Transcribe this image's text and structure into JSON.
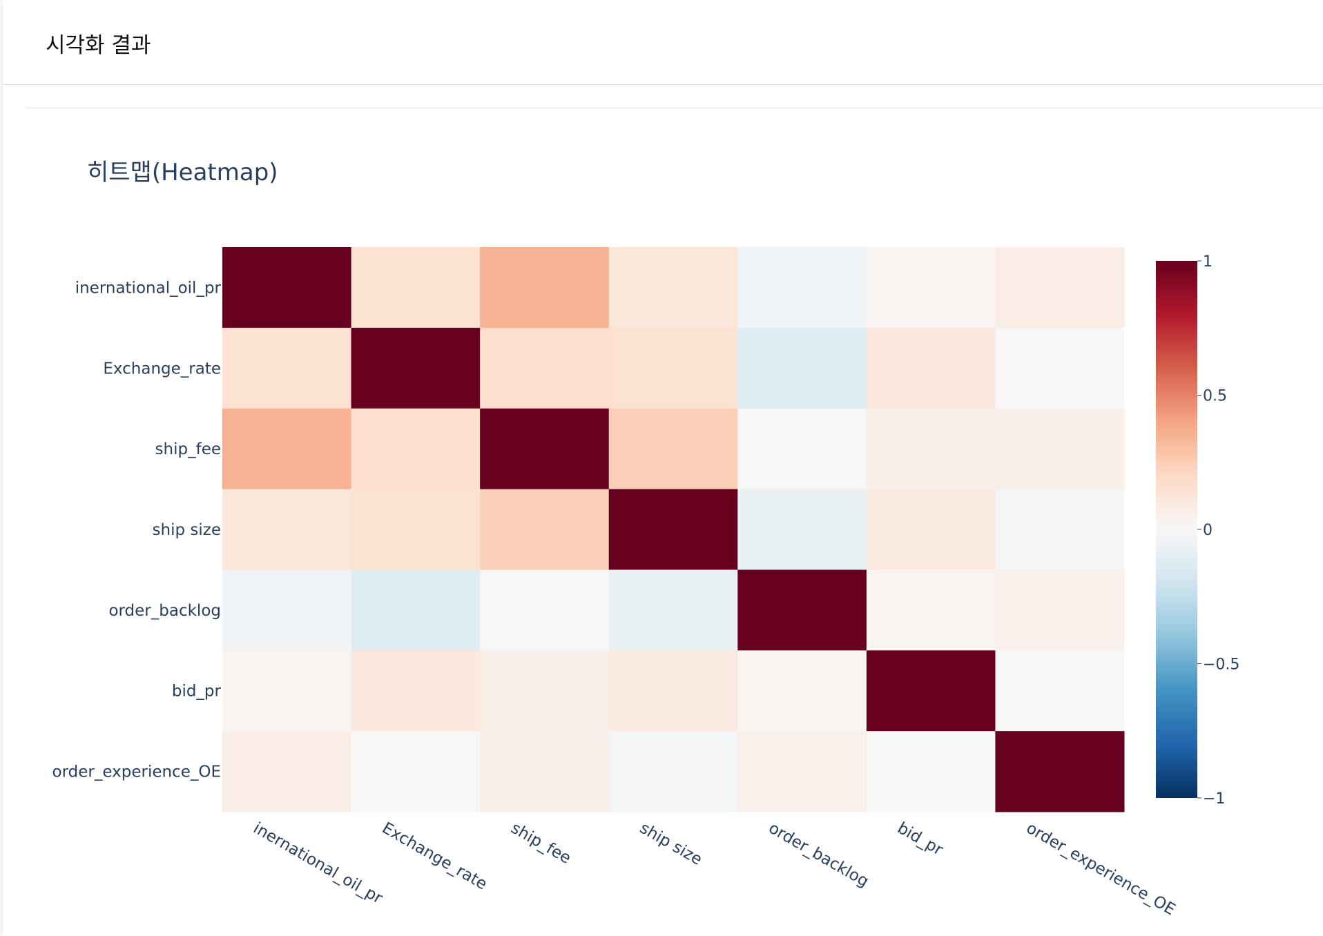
{
  "header": {
    "title": "시각화 결과"
  },
  "chart_data": {
    "type": "heatmap",
    "title": "히트맵(Heatmap)",
    "x_categories": [
      "inernational_oil_pr",
      "Exchange_rate",
      "ship_fee",
      "ship size",
      "order_backlog",
      "bid_pr",
      "order_experience_OE"
    ],
    "y_categories": [
      "inernational_oil_pr",
      "Exchange_rate",
      "ship_fee",
      "ship size",
      "order_backlog",
      "bid_pr",
      "order_experience_OE"
    ],
    "z": [
      [
        1.0,
        0.15,
        0.35,
        0.12,
        -0.03,
        0.02,
        0.07
      ],
      [
        0.15,
        1.0,
        0.17,
        0.15,
        -0.12,
        0.11,
        0.0
      ],
      [
        0.35,
        0.17,
        1.0,
        0.24,
        0.0,
        0.06,
        0.06
      ],
      [
        0.12,
        0.15,
        0.24,
        1.0,
        -0.07,
        0.09,
        -0.02
      ],
      [
        -0.03,
        -0.12,
        0.0,
        -0.07,
        1.0,
        0.02,
        0.05
      ],
      [
        0.02,
        0.11,
        0.06,
        0.09,
        0.02,
        1.0,
        0.0
      ],
      [
        0.07,
        0.0,
        0.06,
        -0.02,
        0.05,
        0.0,
        1.0
      ]
    ],
    "zmin": -1,
    "zmax": 1,
    "colorscale": "RdBu reversed",
    "colorbar_ticks": [
      "1",
      "0.5",
      "0",
      "−0.5",
      "−1"
    ],
    "colorbar_tick_values": [
      1,
      0.5,
      0,
      -0.5,
      -1
    ],
    "colors": {
      "min": "#053061",
      "max": "#67001f",
      "mid": "#f7f7f7"
    }
  }
}
